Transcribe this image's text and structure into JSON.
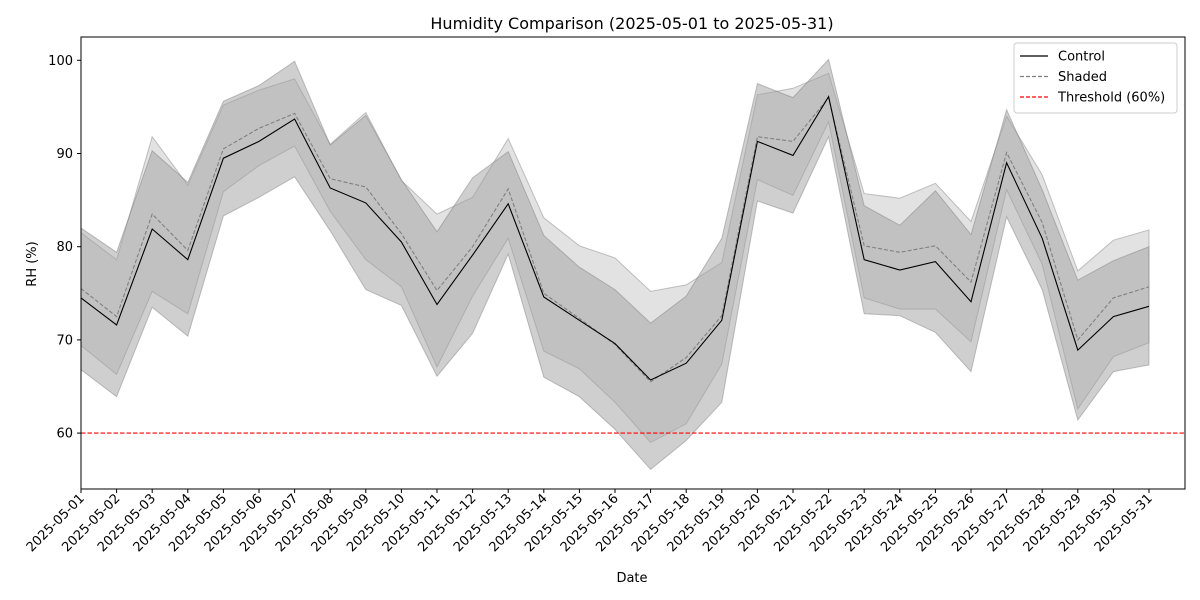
{
  "chart_data": {
    "type": "line",
    "title": "Humidity Comparison (2025-05-01 to 2025-05-31)",
    "xlabel": "Date",
    "ylabel": "RH (%)",
    "ylim": [
      54,
      102.5
    ],
    "yticks": [
      60,
      70,
      80,
      90,
      100
    ],
    "x": [
      "2025-05-01",
      "2025-05-02",
      "2025-05-03",
      "2025-05-04",
      "2025-05-05",
      "2025-05-06",
      "2025-05-07",
      "2025-05-08",
      "2025-05-09",
      "2025-05-10",
      "2025-05-11",
      "2025-05-12",
      "2025-05-13",
      "2025-05-14",
      "2025-05-15",
      "2025-05-16",
      "2025-05-17",
      "2025-05-18",
      "2025-05-19",
      "2025-05-20",
      "2025-05-21",
      "2025-05-22",
      "2025-05-23",
      "2025-05-24",
      "2025-05-25",
      "2025-05-26",
      "2025-05-27",
      "2025-05-28",
      "2025-05-29",
      "2025-05-30",
      "2025-05-31"
    ],
    "series": [
      {
        "name": "Control",
        "color": "#000000",
        "style": "solid",
        "values": [
          74.5,
          71.6,
          81.9,
          78.6,
          89.5,
          91.3,
          93.7,
          86.3,
          84.7,
          80.5,
          73.8,
          79.1,
          84.6,
          74.6,
          72.1,
          69.6,
          65.7,
          67.5,
          72.1,
          91.3,
          89.8,
          96.1,
          78.6,
          77.5,
          78.4,
          74.1,
          89.0,
          80.9,
          68.9,
          72.5,
          73.6
        ],
        "band_upper": [
          82.0,
          79.4,
          90.3,
          86.9,
          95.6,
          97.3,
          99.9,
          90.9,
          94.1,
          87.2,
          81.6,
          87.4,
          90.2,
          81.2,
          77.8,
          75.4,
          71.8,
          74.7,
          80.9,
          97.5,
          96.0,
          100.1,
          84.4,
          82.3,
          86.0,
          81.3,
          94.7,
          86.1,
          76.4,
          78.5,
          80.0
        ],
        "band_lower": [
          66.8,
          63.9,
          73.5,
          70.4,
          83.3,
          85.3,
          87.5,
          81.7,
          75.4,
          73.7,
          66.1,
          70.7,
          79.2,
          66.0,
          63.9,
          60.4,
          56.1,
          59.2,
          63.3,
          84.9,
          83.6,
          91.8,
          72.8,
          72.6,
          70.8,
          66.6,
          83.2,
          75.4,
          61.4,
          66.6,
          67.3
        ]
      },
      {
        "name": "Shaded",
        "color": "#808080",
        "style": "dashed",
        "values": [
          75.5,
          72.5,
          83.5,
          79.6,
          90.5,
          92.7,
          94.3,
          87.3,
          86.4,
          81.4,
          75.3,
          80.0,
          86.2,
          75.0,
          72.3,
          69.5,
          65.5,
          68.1,
          72.6,
          91.8,
          91.3,
          96.0,
          80.1,
          79.4,
          80.1,
          76.2,
          90.1,
          82.6,
          70.0,
          74.5,
          75.7
        ],
        "band_upper": [
          81.5,
          78.6,
          91.8,
          86.6,
          95.2,
          96.8,
          98.0,
          91.0,
          94.4,
          87.1,
          83.5,
          85.3,
          91.6,
          83.1,
          80.1,
          78.8,
          75.2,
          75.9,
          78.3,
          96.3,
          97.0,
          98.6,
          85.7,
          85.2,
          86.8,
          82.7,
          94.0,
          87.7,
          77.4,
          80.7,
          81.8
        ],
        "band_lower": [
          69.4,
          66.3,
          75.2,
          72.8,
          85.9,
          88.7,
          90.8,
          83.8,
          78.6,
          75.7,
          67.1,
          74.7,
          80.9,
          68.8,
          66.9,
          63.3,
          59.0,
          61.0,
          67.4,
          87.2,
          85.5,
          93.4,
          74.5,
          73.3,
          73.3,
          69.8,
          86.1,
          78.1,
          62.6,
          68.2,
          69.7
        ]
      }
    ],
    "threshold": {
      "name": "Threshold (60%)",
      "value": 60,
      "color": "#ff0000",
      "style": "dashed"
    },
    "band_colors": {
      "Control": "#a0a0a0",
      "Shaded": "#a0a0a0"
    },
    "legend_position": "top-right",
    "grid": false
  }
}
